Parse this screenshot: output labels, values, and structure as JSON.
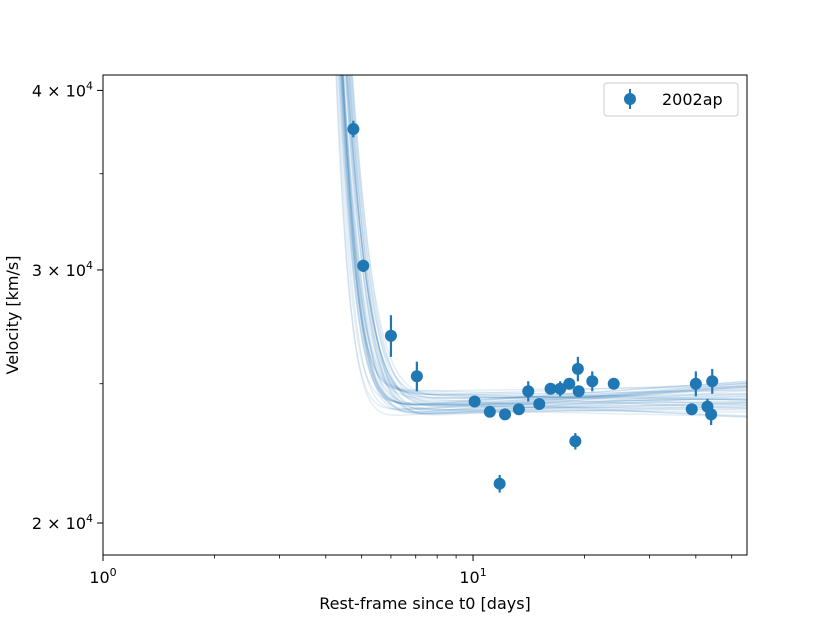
{
  "chart_data": {
    "type": "scatter",
    "xscale": "log",
    "yscale": "log",
    "xlabel": "Rest-frame since t0 [days]",
    "ylabel": "Velocity [km/s]",
    "xlim": [
      1,
      55
    ],
    "ylim": [
      19000,
      41000
    ],
    "x_ticks": [
      {
        "value": 1,
        "base": "10",
        "exp": "0"
      },
      {
        "value": 10,
        "base": "10",
        "exp": "1"
      }
    ],
    "y_ticks": [
      {
        "value": 20000,
        "mant": "2",
        "base": "10",
        "exp": "4"
      },
      {
        "value": 30000,
        "mant": "3",
        "base": "10",
        "exp": "4"
      },
      {
        "value": 40000,
        "mant": "4",
        "base": "10",
        "exp": "4"
      }
    ],
    "legend": {
      "position": "top-right",
      "label": "2002ap"
    },
    "colors": {
      "series": "#1f77b4",
      "fit": "#1f77b4"
    },
    "series": [
      {
        "name": "2002ap",
        "points": [
          {
            "x": 4.75,
            "y": 37600,
            "err": 500
          },
          {
            "x": 5.05,
            "y": 30200,
            "err": 300
          },
          {
            "x": 6.0,
            "y": 27000,
            "err": 900
          },
          {
            "x": 7.05,
            "y": 25300,
            "err": 600
          },
          {
            "x": 10.1,
            "y": 24300,
            "err": 200
          },
          {
            "x": 11.1,
            "y": 23900,
            "err": 200
          },
          {
            "x": 11.8,
            "y": 21300,
            "err": 300
          },
          {
            "x": 12.2,
            "y": 23800,
            "err": 200
          },
          {
            "x": 13.3,
            "y": 24000,
            "err": 200
          },
          {
            "x": 14.1,
            "y": 24700,
            "err": 400
          },
          {
            "x": 15.1,
            "y": 24200,
            "err": 200
          },
          {
            "x": 16.2,
            "y": 24800,
            "err": 200
          },
          {
            "x": 17.2,
            "y": 24800,
            "err": 300
          },
          {
            "x": 18.2,
            "y": 25000,
            "err": 200
          },
          {
            "x": 18.9,
            "y": 22800,
            "err": 300
          },
          {
            "x": 19.2,
            "y": 25600,
            "err": 500
          },
          {
            "x": 19.3,
            "y": 24700,
            "err": 200
          },
          {
            "x": 21.0,
            "y": 25100,
            "err": 400
          },
          {
            "x": 24.0,
            "y": 25000,
            "err": 200
          },
          {
            "x": 39.0,
            "y": 24000,
            "err": 200
          },
          {
            "x": 40.0,
            "y": 25000,
            "err": 500
          },
          {
            "x": 43.0,
            "y": 24100,
            "err": 300
          },
          {
            "x": 44.0,
            "y": 23800,
            "err": 400
          },
          {
            "x": 44.3,
            "y": 25100,
            "err": 500
          }
        ]
      }
    ],
    "model_fit": {
      "description": "posterior sample curves",
      "n_curves": 40,
      "v_floor_center": 24300,
      "v_floor_spread": 500,
      "slope_center": 0.005,
      "slope_spread": 0.02,
      "amp_center": 85000,
      "amp_spread": 15000,
      "tau_center": 0.42,
      "tau_spread": 0.12,
      "t0": 3.8
    }
  }
}
